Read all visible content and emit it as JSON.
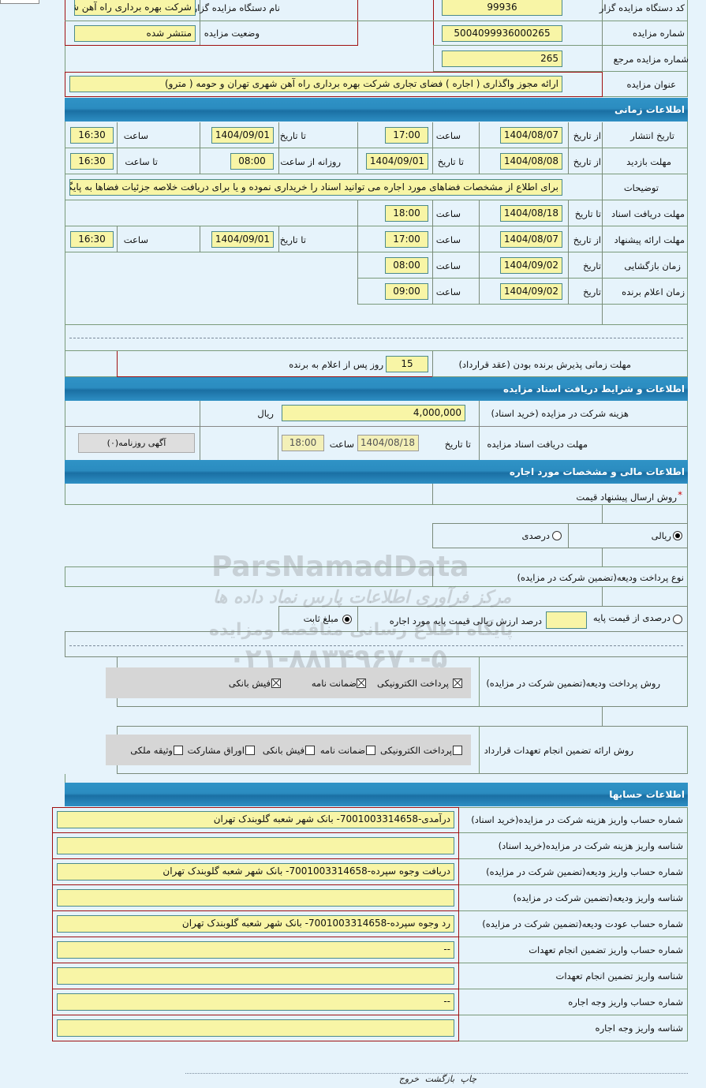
{
  "general": {
    "org_code_label": "کد دستگاه مزایده گزار",
    "org_code": "99936",
    "org_name_label": "نام دستگاه مزایده گزار",
    "org_name": "شرکت بهره برداری راه آهن شهری تهران",
    "auction_no_label": "شماره مزایده",
    "auction_no": "5004099936000265",
    "status_label": "وضعیت مزایده",
    "status": "منتشر شده",
    "ref_no_label": "شماره مزایده مرجع",
    "ref_no": "265",
    "title_label": "عنوان مزایده",
    "title": "ارائه مجوز واگذاری ( اجاره ) فضای تجاری شرکت بهره برداری راه آهن شهری تهران و حومه ( مترو)"
  },
  "time": {
    "section_title": "اطلاعات زمانی",
    "publish": {
      "label": "تاریخ انتشار",
      "from_label": "از تاریخ",
      "from_date": "1404/08/07",
      "time_label": "ساعت",
      "from_time": "17:00",
      "to_label": "تا تاریخ",
      "to_date": "1404/09/01",
      "time2_label": "ساعت",
      "to_time": "16:30"
    },
    "visit": {
      "label": "مهلت بازدید",
      "from_label": "از تاریخ",
      "from_date": "1404/08/08",
      "to_label": "تا تاریخ",
      "to_date": "1404/09/01",
      "daily_label": "روزانه از ساعت",
      "daily_from": "08:00",
      "until_label": "تا ساعت",
      "daily_to": "16:30"
    },
    "notes": {
      "label": "توضیحات",
      "value": "برای اطلاع از مشخصات فضاهای مورد اجاره می توانید اسناد را خریداری نموده و یا برای دریافت خلاصه جزئیات فضاها به پایگاه"
    },
    "doc_deadline": {
      "label": "مهلت دریافت اسناد",
      "to_label": "تا تاریخ",
      "date": "1404/08/18",
      "time_label": "ساعت",
      "time": "18:00"
    },
    "offer": {
      "label": "مهلت ارائه پیشنهاد",
      "from_label": "از تاریخ",
      "from_date": "1404/08/07",
      "time_label": "ساعت",
      "from_time": "17:00",
      "to_label": "تا تاریخ",
      "to_date": "1404/09/01",
      "time2_label": "ساعت",
      "to_time": "16:30"
    },
    "opening": {
      "label": "زمان بازگشایی",
      "date_label": "تاریخ",
      "date": "1404/09/02",
      "time_label": "ساعت",
      "time": "08:00"
    },
    "winner": {
      "label": "زمان اعلام برنده",
      "date_label": "تاریخ",
      "date": "1404/09/02",
      "time_label": "ساعت",
      "time": "09:00"
    },
    "acceptance": {
      "label": "مهلت زمانی پذیرش برنده بودن (عقد قرارداد)",
      "days": "15",
      "suffix": "روز پس از اعلام به برنده"
    }
  },
  "docs": {
    "section_title": "اطلاعات و شرایط دریافت اسناد مزایده",
    "fee_label": "هزینه شرکت در مزایده (خرید اسناد)",
    "fee": "4,000,000",
    "currency": "ریال",
    "deadline_label": "مهلت دریافت اسناد مزایده",
    "to_label": "تا تاریخ",
    "date": "1404/08/18",
    "time_label": "ساعت",
    "time": "18:00",
    "newspaper_button": "آگهی روزنامه(۰)"
  },
  "finance": {
    "section_title": "اطلاعات مالی و مشخصات مورد اجاره",
    "price_method_label": "روش ارسال پیشنهاد قیمت",
    "required_mark": "*",
    "price_options": [
      {
        "label": "ریالی",
        "selected": true
      },
      {
        "label": "درصدی",
        "selected": false
      }
    ],
    "deposit_type_label": "نوع پرداخت ودیعه(تضمین شرکت در مزایده)",
    "deposit_percent_label": "درصدی از قیمت پایه",
    "deposit_percent_selected": false,
    "deposit_percent_value": "",
    "deposit_percent_desc": "درصد ارزش ریالی قیمت پایه مورد اجاره",
    "deposit_fixed_label": "مبلغ ثابت",
    "deposit_fixed_selected": true,
    "deposit_method_label": "روش پرداخت ودیعه(تضمین شرکت در مزایده)",
    "deposit_methods": [
      {
        "label": "پرداخت الکترونیکی",
        "checked": true
      },
      {
        "label": "ضمانت نامه",
        "checked": true
      },
      {
        "label": "فیش بانکی",
        "checked": true
      }
    ],
    "guarantee_label": "روش ارائه تضمین انجام تعهدات قرارداد",
    "guarantee_methods": [
      {
        "label": "پرداخت الکترونیکی",
        "checked": false
      },
      {
        "label": "ضمانت نامه",
        "checked": false
      },
      {
        "label": "فیش بانکی",
        "checked": false
      },
      {
        "label": "اوراق مشارکت",
        "checked": false
      },
      {
        "label": "وثیقه ملکی",
        "checked": false
      }
    ]
  },
  "accounts": {
    "section_title": "اطلاعات حسابها",
    "rows": [
      {
        "label": "شماره حساب واریز هزینه شرکت در مزایده(خرید اسناد)",
        "value": "درآمدی-7001003314658- بانک شهر شعبه گلوبندک تهران"
      },
      {
        "label": "شناسه واریز هزینه شرکت در مزایده(خرید اسناد)",
        "value": ""
      },
      {
        "label": "شماره حساب واریز ودیعه(تضمین شرکت در مزایده)",
        "value": "دریافت وجوه سپرده-7001003314658- بانک شهر شعبه گلوبندک تهران"
      },
      {
        "label": "شناسه واریز ودیعه(تضمین شرکت در مزایده)",
        "value": ""
      },
      {
        "label": "شماره حساب عودت ودیعه(تضمین شرکت در مزایده)",
        "value": "رد وجوه سپرده-7001003314658- بانک شهر شعبه گلوبندک تهران"
      },
      {
        "label": "شماره حساب واریز تضمین انجام تعهدات",
        "value": "--"
      },
      {
        "label": "شناسه واریز تضمین انجام تعهدات",
        "value": ""
      },
      {
        "label": "شماره حساب واریز وجه اجاره",
        "value": "--"
      },
      {
        "label": "شناسه واریز وجه اجاره",
        "value": ""
      }
    ]
  },
  "footer": {
    "print": "چاپ",
    "back": "بازگشت",
    "exit": "خروج"
  },
  "watermark": {
    "brand": "ParsNamadData",
    "line1": "مرکز فرآوری اطلاعات پارس نماد داده ها",
    "line2": "پایگاه اطلاع رسانی مناقصه ومزایده",
    "phone": "۰۲۱-۸۸۳۴۹۶۷۰-۵"
  },
  "colors": {
    "field_bg": "#f8f5a6",
    "band": "#2b8cc0",
    "page_bg": "#e6f3fb"
  }
}
